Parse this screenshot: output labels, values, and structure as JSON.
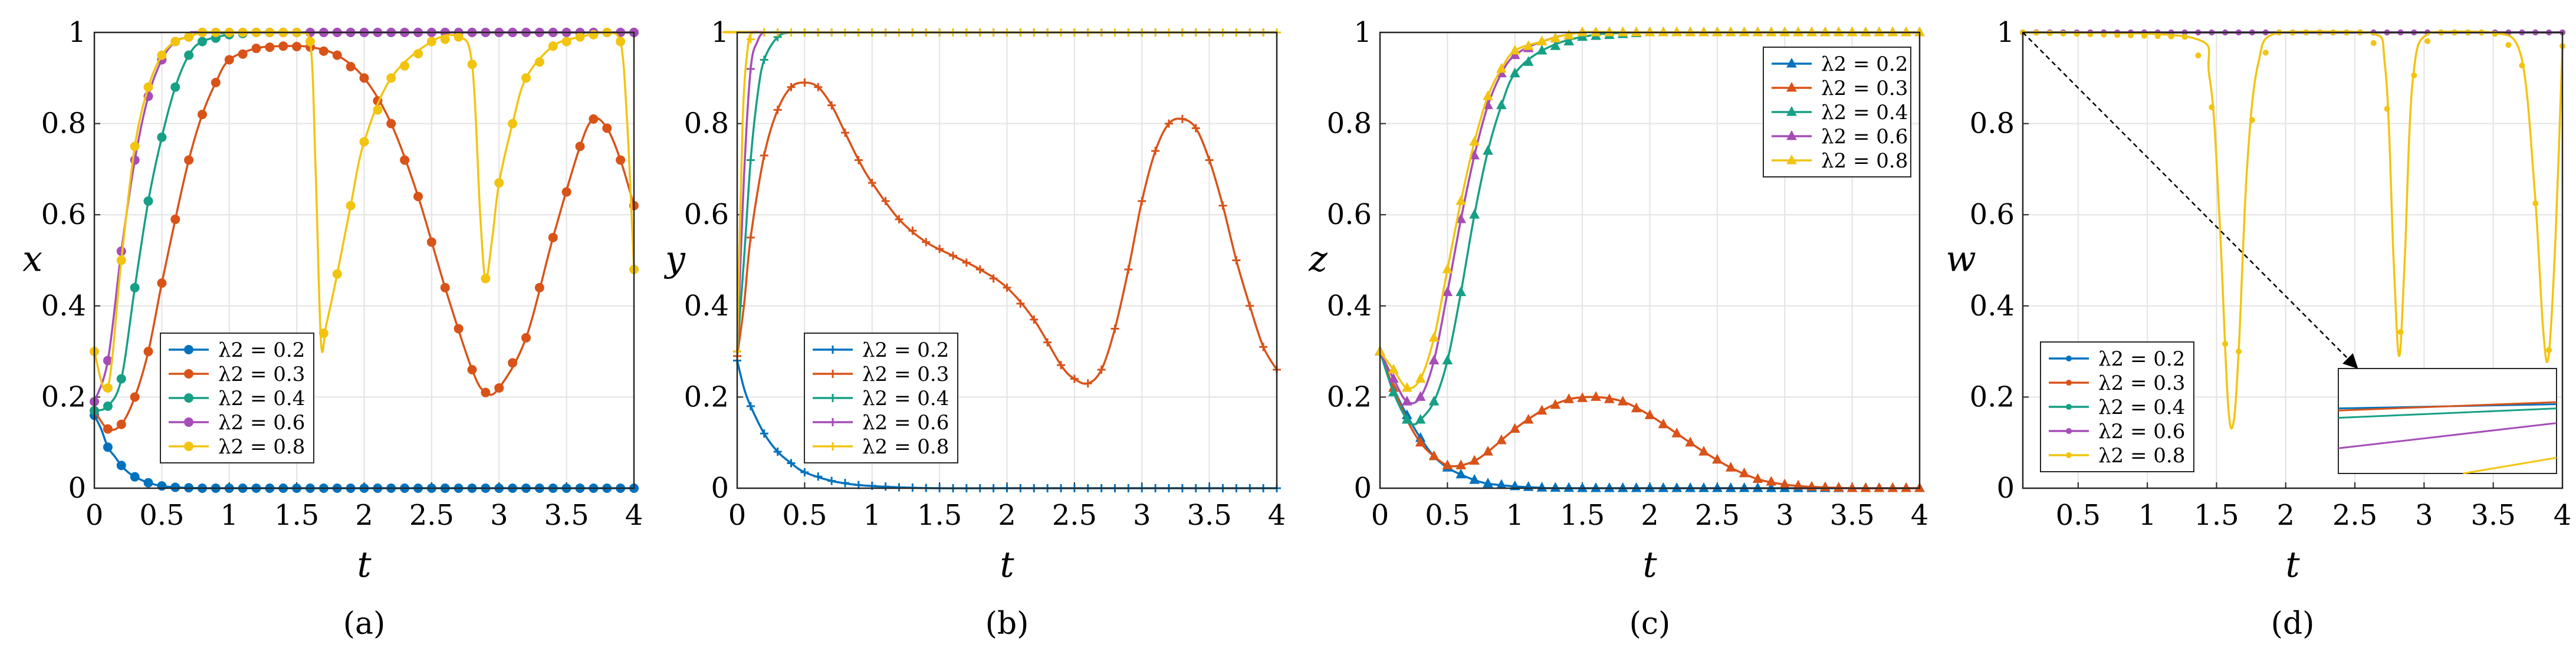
{
  "colors": {
    "0.2": "#0072BD",
    "0.3": "#D95319",
    "0.4": "#16A085",
    "0.6": "#A64DB8",
    "0.8": "#F2C40F"
  },
  "chart_data": [
    {
      "type": "line",
      "panel": "(a)",
      "xlabel": "t",
      "ylabel": "x",
      "xlim": [
        0,
        4
      ],
      "ylim": [
        0,
        1
      ],
      "xticks": [
        "0",
        "0.5",
        "1",
        "1.5",
        "2",
        "2.5",
        "3",
        "3.5",
        "4"
      ],
      "yticks": [
        "0",
        "0.2",
        "0.4",
        "0.6",
        "0.8",
        "1"
      ],
      "grid": true,
      "legend_position": "bottom-left",
      "marker": "circle",
      "series": [
        {
          "name": "λ2 = 0.2",
          "key": "0.2",
          "x": [
            0,
            0.05,
            0.1,
            0.15,
            0.2,
            0.25,
            0.3,
            0.4,
            0.5,
            0.6,
            0.8,
            1,
            4
          ],
          "y": [
            0.16,
            0.13,
            0.09,
            0.07,
            0.05,
            0.035,
            0.025,
            0.012,
            0.005,
            0.002,
            0,
            0,
            0
          ]
        },
        {
          "name": "λ2 = 0.3",
          "key": "0.3",
          "x": [
            0,
            0.1,
            0.2,
            0.3,
            0.4,
            0.5,
            0.6,
            0.7,
            0.8,
            0.9,
            1,
            1.2,
            1.4,
            1.6,
            1.8,
            2,
            2.2,
            2.4,
            2.6,
            2.8,
            2.9,
            3,
            3.2,
            3.4,
            3.6,
            3.7,
            3.8,
            3.9,
            4
          ],
          "y": [
            0.17,
            0.13,
            0.14,
            0.2,
            0.3,
            0.45,
            0.59,
            0.72,
            0.82,
            0.89,
            0.94,
            0.965,
            0.97,
            0.968,
            0.95,
            0.9,
            0.8,
            0.64,
            0.44,
            0.26,
            0.21,
            0.22,
            0.33,
            0.55,
            0.75,
            0.81,
            0.79,
            0.72,
            0.62
          ]
        },
        {
          "name": "λ2 = 0.4",
          "key": "0.4",
          "x": [
            0,
            0.1,
            0.2,
            0.3,
            0.4,
            0.5,
            0.6,
            0.7,
            0.8,
            1,
            1.2,
            4
          ],
          "y": [
            0.17,
            0.18,
            0.24,
            0.44,
            0.63,
            0.77,
            0.88,
            0.95,
            0.98,
            0.995,
            1,
            1
          ]
        },
        {
          "name": "λ2 = 0.6",
          "key": "0.6",
          "x": [
            0,
            0.1,
            0.2,
            0.3,
            0.4,
            0.5,
            0.6,
            0.7,
            0.8,
            1,
            4
          ],
          "y": [
            0.19,
            0.28,
            0.52,
            0.72,
            0.86,
            0.94,
            0.98,
            0.99,
            1,
            1,
            1
          ]
        },
        {
          "name": "λ2 = 0.8",
          "key": "0.8",
          "x": [
            0,
            0.1,
            0.2,
            0.3,
            0.4,
            0.5,
            0.6,
            0.7,
            0.8,
            1,
            1.5,
            1.6,
            1.64,
            1.68,
            1.72,
            1.8,
            1.9,
            2,
            2.2,
            2.5,
            2.7,
            2.8,
            2.86,
            2.9,
            2.95,
            3,
            3.1,
            3.2,
            3.4,
            3.6,
            3.8,
            3.9,
            3.95,
            4
          ],
          "y": [
            0.3,
            0.22,
            0.5,
            0.75,
            0.88,
            0.95,
            0.98,
            0.99,
            1,
            1,
            1,
            0.98,
            0.7,
            0.32,
            0.36,
            0.47,
            0.62,
            0.76,
            0.9,
            0.98,
            0.99,
            0.93,
            0.6,
            0.46,
            0.55,
            0.67,
            0.8,
            0.9,
            0.97,
            0.99,
            1,
            0.98,
            0.8,
            0.48
          ]
        }
      ]
    },
    {
      "type": "line",
      "panel": "(b)",
      "xlabel": "t",
      "ylabel": "y",
      "xlim": [
        0,
        4
      ],
      "ylim": [
        0,
        1
      ],
      "xticks": [
        "0",
        "0.5",
        "1",
        "1.5",
        "2",
        "2.5",
        "3",
        "3.5",
        "4"
      ],
      "yticks": [
        "0",
        "0.2",
        "0.4",
        "0.6",
        "0.8",
        "1"
      ],
      "grid": true,
      "legend_position": "bottom-left",
      "marker": "plus",
      "series": [
        {
          "name": "λ2 = 0.2",
          "key": "0.2",
          "x": [
            0,
            0.05,
            0.1,
            0.2,
            0.3,
            0.4,
            0.5,
            0.7,
            0.9,
            1.2,
            1.5,
            2,
            4
          ],
          "y": [
            0.28,
            0.22,
            0.18,
            0.12,
            0.08,
            0.055,
            0.035,
            0.016,
            0.007,
            0.002,
            0,
            0,
            0
          ]
        },
        {
          "name": "λ2 = 0.3",
          "key": "0.3",
          "x": [
            0,
            0.05,
            0.1,
            0.2,
            0.3,
            0.4,
            0.5,
            0.6,
            0.7,
            0.8,
            0.9,
            1,
            1.2,
            1.4,
            1.6,
            1.8,
            2,
            2.2,
            2.4,
            2.5,
            2.6,
            2.7,
            2.8,
            2.9,
            3,
            3.1,
            3.2,
            3.3,
            3.4,
            3.5,
            3.6,
            3.7,
            3.8,
            3.9,
            4
          ],
          "y": [
            0.29,
            0.4,
            0.55,
            0.73,
            0.83,
            0.88,
            0.89,
            0.88,
            0.84,
            0.78,
            0.72,
            0.67,
            0.59,
            0.54,
            0.51,
            0.48,
            0.44,
            0.37,
            0.27,
            0.24,
            0.23,
            0.26,
            0.35,
            0.48,
            0.63,
            0.74,
            0.8,
            0.81,
            0.79,
            0.72,
            0.62,
            0.5,
            0.4,
            0.31,
            0.26
          ]
        },
        {
          "name": "λ2 = 0.4",
          "key": "0.4",
          "x": [
            0,
            0.05,
            0.1,
            0.15,
            0.2,
            0.3,
            0.4,
            0.5,
            4
          ],
          "y": [
            0.3,
            0.5,
            0.72,
            0.86,
            0.94,
            0.99,
            1,
            1,
            1
          ]
        },
        {
          "name": "λ2 = 0.6",
          "key": "0.6",
          "x": [
            0,
            0.05,
            0.1,
            0.15,
            0.2,
            0.3,
            4
          ],
          "y": [
            0.3,
            0.68,
            0.92,
            0.98,
            1,
            1,
            1
          ]
        },
        {
          "name": "λ2 = 0.8",
          "key": "0.8",
          "x": [
            0,
            0.04,
            0.08,
            0.12,
            0.2,
            4
          ],
          "y": [
            0.3,
            0.8,
            0.97,
            1,
            1,
            1
          ]
        }
      ]
    },
    {
      "type": "line",
      "panel": "(c)",
      "xlabel": "t",
      "ylabel": "z",
      "xlim": [
        0,
        4
      ],
      "ylim": [
        0,
        1
      ],
      "xticks": [
        "0",
        "0.5",
        "1",
        "1.5",
        "2",
        "2.5",
        "3",
        "3.5",
        "4"
      ],
      "yticks": [
        "0",
        "0.2",
        "0.4",
        "0.6",
        "0.8",
        "1"
      ],
      "grid": true,
      "legend_position": "top-right",
      "marker": "triangle",
      "series": [
        {
          "name": "λ2 = 0.2",
          "key": "0.2",
          "x": [
            0,
            0.1,
            0.2,
            0.3,
            0.4,
            0.5,
            0.6,
            0.7,
            0.8,
            1,
            1.2,
            1.5,
            4
          ],
          "y": [
            0.3,
            0.22,
            0.16,
            0.11,
            0.07,
            0.045,
            0.03,
            0.018,
            0.01,
            0.004,
            0.001,
            0,
            0
          ]
        },
        {
          "name": "λ2 = 0.3",
          "key": "0.3",
          "x": [
            0,
            0.1,
            0.2,
            0.3,
            0.4,
            0.5,
            0.6,
            0.7,
            0.8,
            1,
            1.2,
            1.4,
            1.6,
            1.8,
            2,
            2.2,
            2.4,
            2.6,
            2.8,
            3,
            3.2,
            3.5,
            4
          ],
          "y": [
            0.3,
            0.22,
            0.15,
            0.1,
            0.07,
            0.05,
            0.05,
            0.06,
            0.08,
            0.13,
            0.17,
            0.195,
            0.2,
            0.19,
            0.16,
            0.12,
            0.08,
            0.045,
            0.02,
            0.008,
            0.003,
            0,
            0
          ]
        },
        {
          "name": "λ2 = 0.4",
          "key": "0.4",
          "x": [
            0,
            0.1,
            0.2,
            0.25,
            0.3,
            0.4,
            0.5,
            0.6,
            0.7,
            0.8,
            0.9,
            1,
            1.2,
            1.5,
            2,
            4
          ],
          "y": [
            0.3,
            0.21,
            0.15,
            0.14,
            0.15,
            0.19,
            0.28,
            0.43,
            0.6,
            0.74,
            0.84,
            0.91,
            0.96,
            0.99,
            1,
            1
          ]
        },
        {
          "name": "λ2 = 0.6",
          "key": "0.6",
          "x": [
            0,
            0.1,
            0.2,
            0.3,
            0.4,
            0.5,
            0.6,
            0.7,
            0.8,
            0.9,
            1,
            1.2,
            1.5,
            2,
            4
          ],
          "y": [
            0.3,
            0.24,
            0.19,
            0.2,
            0.28,
            0.43,
            0.59,
            0.73,
            0.84,
            0.91,
            0.95,
            0.98,
            1,
            1,
            1
          ]
        },
        {
          "name": "λ2 = 0.8",
          "key": "0.8",
          "x": [
            0,
            0.1,
            0.2,
            0.3,
            0.4,
            0.5,
            0.6,
            0.7,
            0.8,
            0.9,
            1,
            1.2,
            1.5,
            2,
            4
          ],
          "y": [
            0.3,
            0.26,
            0.22,
            0.24,
            0.33,
            0.48,
            0.63,
            0.76,
            0.86,
            0.92,
            0.96,
            0.98,
            1,
            1,
            1
          ]
        }
      ]
    },
    {
      "type": "line",
      "panel": "(d)",
      "xlabel": "t",
      "ylabel": "w",
      "xlim": [
        0.1,
        4
      ],
      "ylim": [
        0,
        1
      ],
      "xticks": [
        "0.5",
        "1",
        "1.5",
        "2",
        "2.5",
        "3",
        "3.5",
        "4"
      ],
      "yticks": [
        "0",
        "0.2",
        "0.4",
        "0.6",
        "0.8",
        "1"
      ],
      "grid": true,
      "legend_position": "bottom-left",
      "marker": "dot",
      "inset": "zoomed view near top-left, arrow from (0.1, 1)",
      "series": [
        {
          "name": "λ2 = 0.2",
          "key": "0.2",
          "x": [
            0.1,
            4
          ],
          "y": [
            1,
            1
          ]
        },
        {
          "name": "λ2 = 0.3",
          "key": "0.3",
          "x": [
            0.1,
            4
          ],
          "y": [
            1,
            1
          ]
        },
        {
          "name": "λ2 = 0.4",
          "key": "0.4",
          "x": [
            0.1,
            4
          ],
          "y": [
            1,
            1
          ]
        },
        {
          "name": "λ2 = 0.6",
          "key": "0.6",
          "x": [
            0.1,
            4
          ],
          "y": [
            1,
            1
          ]
        },
        {
          "name": "λ2 = 0.8",
          "key": "0.8",
          "x": [
            0.1,
            1.3,
            1.45,
            1.52,
            1.58,
            1.62,
            1.66,
            1.72,
            1.8,
            1.95,
            2.6,
            2.72,
            2.78,
            2.82,
            2.86,
            2.92,
            3.05,
            3.5,
            3.7,
            3.8,
            3.86,
            3.9,
            3.95,
            4.0
          ],
          "y": [
            1,
            0.99,
            0.9,
            0.6,
            0.2,
            0.14,
            0.3,
            0.7,
            0.93,
            1,
            1,
            0.92,
            0.5,
            0.29,
            0.5,
            0.9,
            1,
            1,
            0.95,
            0.65,
            0.35,
            0.29,
            0.55,
            0.97
          ]
        }
      ],
      "inset_series": [
        {
          "key": "0.2",
          "y": [
            0.62,
            0.66
          ]
        },
        {
          "key": "0.3",
          "y": [
            0.6,
            0.68
          ]
        },
        {
          "key": "0.4",
          "y": [
            0.53,
            0.62
          ]
        },
        {
          "key": "0.6",
          "y": [
            0.24,
            0.48
          ]
        },
        {
          "key": "0.8",
          "y": [
            -0.2,
            0.15
          ]
        }
      ]
    }
  ],
  "legend_labels": [
    "λ2 = 0.2",
    "λ2 = 0.3",
    "λ2 = 0.4",
    "λ2 = 0.6",
    "λ2 = 0.8"
  ],
  "captions": [
    "(a)",
    "(b)",
    "(c)",
    "(d)"
  ]
}
